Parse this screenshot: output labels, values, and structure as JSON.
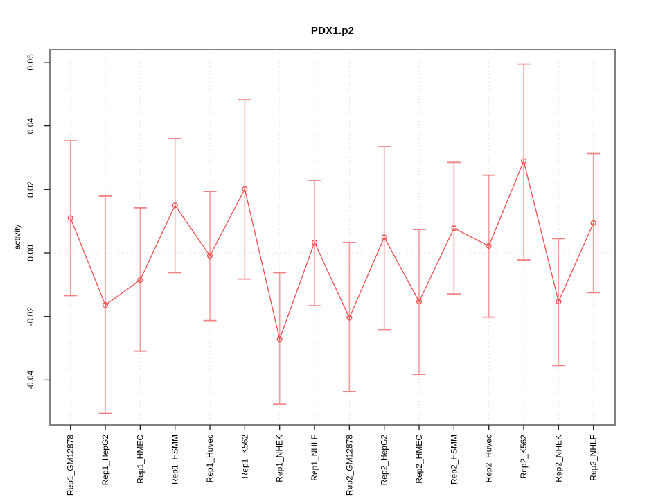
{
  "figure": {
    "title": "PDX1.p2",
    "ylabel": "activity"
  },
  "chart_data": {
    "type": "line",
    "title": "PDX1.p2",
    "xlabel": "",
    "ylabel": "activity",
    "legend": "none",
    "grid": "vertical dotted gridline per category, dotted horizontal line at y=0",
    "categories": [
      "Rep1_GM12878",
      "Rep1_HepG2",
      "Rep1_HMEC",
      "Rep1_HSMM",
      "Rep1_Huvec",
      "Rep1_K562",
      "Rep1_NHEK",
      "Rep1_NHLF",
      "Rep2_GM12878",
      "Rep2_HepG2",
      "Rep2_HMEC",
      "Rep2_HSMM",
      "Rep2_Huvec",
      "Rep2_K562",
      "Rep2_NHEK",
      "Rep2_NHLF"
    ],
    "series": [
      {
        "name": "activity",
        "marker": "open-circle",
        "values": [
          0.011,
          -0.0164,
          -0.0085,
          0.015,
          -0.0009,
          0.0201,
          -0.0271,
          0.0033,
          -0.0204,
          0.0049,
          -0.0153,
          0.0078,
          0.0022,
          0.0289,
          -0.0153,
          0.0094
        ],
        "error_high": [
          0.0353,
          0.0179,
          0.0142,
          0.036,
          0.0194,
          0.0482,
          -0.0062,
          0.0229,
          0.0033,
          0.0336,
          0.0074,
          0.0285,
          0.0245,
          0.0594,
          0.0045,
          0.0313
        ],
        "error_low": [
          -0.0134,
          -0.0505,
          -0.0309,
          -0.0062,
          -0.0213,
          -0.0082,
          -0.0476,
          -0.0166,
          -0.0436,
          -0.0241,
          -0.0382,
          -0.0129,
          -0.0202,
          -0.0022,
          -0.0354,
          -0.0125
        ]
      }
    ],
    "yticks": [
      -0.04,
      -0.02,
      0.0,
      0.02,
      0.04,
      0.06
    ],
    "ytick_labels": [
      "-0.04",
      "-0.02",
      "0.00",
      "0.02",
      "0.04",
      "0.06"
    ],
    "ylim": [
      -0.054,
      0.064
    ],
    "colors": {
      "line": "#f04b4b",
      "point": "#f04b4b",
      "error_bar": "#f59b9b",
      "error_cap": "#f48282",
      "gridline": "#d8d8d8",
      "box": "#808080",
      "tick": "#1a1a1a",
      "text": "#000000"
    }
  }
}
